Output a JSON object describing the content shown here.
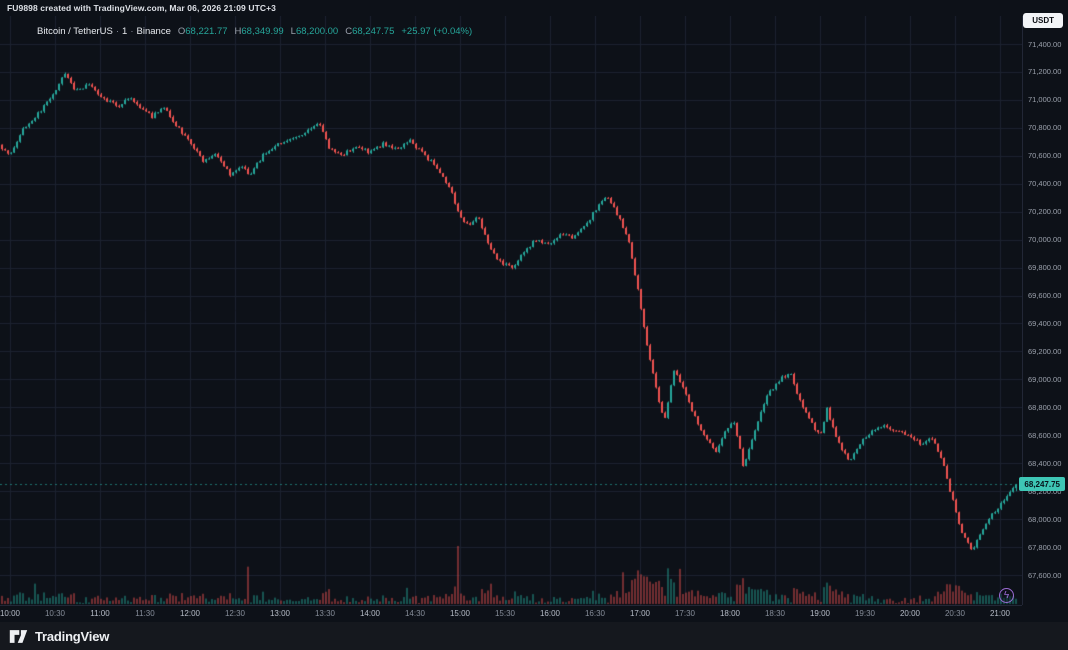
{
  "header": {
    "attribution": "FU9898 created with TradingView.com, Mar 06, 2026 21:09 UTC+3",
    "currency_button": "USDT"
  },
  "legend": {
    "symbol": "Bitcoin / TetherUS",
    "separator": "·",
    "interval": "1",
    "exchange": "Binance",
    "ohlc": {
      "o_label": "O",
      "o": "68,221.77",
      "h_label": "H",
      "h": "68,349.99",
      "l_label": "L",
      "l": "68,200.00",
      "c_label": "C",
      "c": "68,247.75"
    },
    "change": "+25.97 (+0.04%)"
  },
  "footer": {
    "brand": "TradingView"
  },
  "boost_button": {
    "icon": "lightning-icon",
    "glyph": "ϟ"
  },
  "chart_data": {
    "type": "candlestick",
    "title": "Bitcoin / TetherUS · 1 · Binance",
    "symbol": "BTC/USDT",
    "exchange": "Binance",
    "interval": "1 minute",
    "timezone": "UTC+3",
    "session_date": "Mar 06, 2026 21:09",
    "last": {
      "open": 68221.77,
      "high": 68349.99,
      "low": 68200.0,
      "close": 68247.75
    },
    "last_price_label": "68,247.75",
    "price_axis": {
      "min": 67600,
      "max": 71400,
      "step": 200,
      "labels": [
        "67,600.00",
        "67,800.00",
        "68,000.00",
        "68,200.00",
        "68,400.00",
        "68,600.00",
        "68,800.00",
        "69,000.00",
        "69,200.00",
        "69,400.00",
        "69,600.00",
        "69,800.00",
        "70,000.00",
        "70,200.00",
        "70,400.00",
        "70,600.00",
        "70,800.00",
        "71,000.00",
        "71,200.00",
        "71,400.00"
      ]
    },
    "time_axis": {
      "start_hour": 9.88,
      "end_hour": 21.16,
      "ticks": [
        {
          "t": 10.0,
          "label": "10:00"
        },
        {
          "t": 10.5,
          "label": "10:30"
        },
        {
          "t": 11.0,
          "label": "11:00"
        },
        {
          "t": 11.5,
          "label": "11:30"
        },
        {
          "t": 12.0,
          "label": "12:00"
        },
        {
          "t": 12.5,
          "label": "12:30"
        },
        {
          "t": 13.0,
          "label": "13:00"
        },
        {
          "t": 13.5,
          "label": "13:30"
        },
        {
          "t": 14.0,
          "label": "14:00"
        },
        {
          "t": 14.5,
          "label": "14:30"
        },
        {
          "t": 15.0,
          "label": "15:00"
        },
        {
          "t": 15.5,
          "label": "15:30"
        },
        {
          "t": 16.0,
          "label": "16:00"
        },
        {
          "t": 16.5,
          "label": "16:30"
        },
        {
          "t": 17.0,
          "label": "17:00"
        },
        {
          "t": 17.5,
          "label": "17:30"
        },
        {
          "t": 18.0,
          "label": "18:00"
        },
        {
          "t": 18.5,
          "label": "18:30"
        },
        {
          "t": 19.0,
          "label": "19:00"
        },
        {
          "t": 19.5,
          "label": "19:30"
        },
        {
          "t": 20.0,
          "label": "20:00"
        },
        {
          "t": 20.5,
          "label": "20:30"
        },
        {
          "t": 21.0,
          "label": "21:00"
        }
      ]
    },
    "price_path_anchors": [
      [
        9.88,
        70680
      ],
      [
        10.0,
        70610
      ],
      [
        10.15,
        70790
      ],
      [
        10.3,
        70890
      ],
      [
        10.45,
        71010
      ],
      [
        10.62,
        71190
      ],
      [
        10.72,
        71060
      ],
      [
        10.88,
        71110
      ],
      [
        11.05,
        71000
      ],
      [
        11.2,
        70955
      ],
      [
        11.33,
        71015
      ],
      [
        11.45,
        70945
      ],
      [
        11.58,
        70880
      ],
      [
        11.7,
        70955
      ],
      [
        11.85,
        70820
      ],
      [
        12.0,
        70700
      ],
      [
        12.15,
        70560
      ],
      [
        12.3,
        70615
      ],
      [
        12.45,
        70460
      ],
      [
        12.57,
        70525
      ],
      [
        12.67,
        70460
      ],
      [
        12.8,
        70595
      ],
      [
        12.95,
        70675
      ],
      [
        13.15,
        70715
      ],
      [
        13.35,
        70795
      ],
      [
        13.44,
        70825
      ],
      [
        13.55,
        70655
      ],
      [
        13.7,
        70610
      ],
      [
        13.85,
        70665
      ],
      [
        14.0,
        70625
      ],
      [
        14.15,
        70685
      ],
      [
        14.3,
        70655
      ],
      [
        14.45,
        70705
      ],
      [
        14.6,
        70605
      ],
      [
        14.75,
        70515
      ],
      [
        14.9,
        70355
      ],
      [
        15.0,
        70155
      ],
      [
        15.1,
        70105
      ],
      [
        15.2,
        70175
      ],
      [
        15.32,
        69955
      ],
      [
        15.45,
        69835
      ],
      [
        15.58,
        69795
      ],
      [
        15.72,
        69915
      ],
      [
        15.85,
        70005
      ],
      [
        16.0,
        69955
      ],
      [
        16.12,
        70055
      ],
      [
        16.25,
        70005
      ],
      [
        16.4,
        70105
      ],
      [
        16.55,
        70255
      ],
      [
        16.65,
        70305
      ],
      [
        16.78,
        70145
      ],
      [
        16.88,
        69975
      ],
      [
        16.98,
        69640
      ],
      [
        17.08,
        69240
      ],
      [
        17.18,
        68940
      ],
      [
        17.27,
        68690
      ],
      [
        17.38,
        69075
      ],
      [
        17.48,
        68945
      ],
      [
        17.6,
        68745
      ],
      [
        17.72,
        68595
      ],
      [
        17.85,
        68475
      ],
      [
        17.95,
        68645
      ],
      [
        18.05,
        68695
      ],
      [
        18.15,
        68375
      ],
      [
        18.28,
        68645
      ],
      [
        18.42,
        68895
      ],
      [
        18.55,
        68995
      ],
      [
        18.67,
        69055
      ],
      [
        18.78,
        68845
      ],
      [
        18.9,
        68695
      ],
      [
        19.0,
        68595
      ],
      [
        19.08,
        68785
      ],
      [
        19.2,
        68555
      ],
      [
        19.33,
        68415
      ],
      [
        19.45,
        68545
      ],
      [
        19.58,
        68635
      ],
      [
        19.72,
        68665
      ],
      [
        19.85,
        68635
      ],
      [
        20.0,
        68595
      ],
      [
        20.12,
        68535
      ],
      [
        20.25,
        68575
      ],
      [
        20.35,
        68445
      ],
      [
        20.45,
        68195
      ],
      [
        20.58,
        67895
      ],
      [
        20.7,
        67775
      ],
      [
        20.82,
        67945
      ],
      [
        20.92,
        68045
      ],
      [
        21.0,
        68095
      ],
      [
        21.08,
        68175
      ],
      [
        21.16,
        68248
      ]
    ],
    "volume_spikes": [
      {
        "t": 14.98,
        "mult": 5
      },
      {
        "t": 15.35,
        "mult": 2
      },
      {
        "t": 15.62,
        "mult": 2.2
      },
      {
        "t": 16.98,
        "mult": 1.6
      },
      {
        "t": 17.3,
        "mult": 1.5
      },
      {
        "t": 20.62,
        "mult": 1.6
      }
    ],
    "render": {
      "candle_minutes": 2,
      "noise": 26,
      "seed": 7
    },
    "colors": {
      "up": "#26a69a",
      "down": "#ef5350",
      "grid": "#1c2230",
      "bg": "#0d1118",
      "axis_text": "#9ba1ac",
      "badge_bg": "#3ec6b5",
      "badge_text": "#07131b",
      "boost": "#9b6bd4"
    }
  }
}
